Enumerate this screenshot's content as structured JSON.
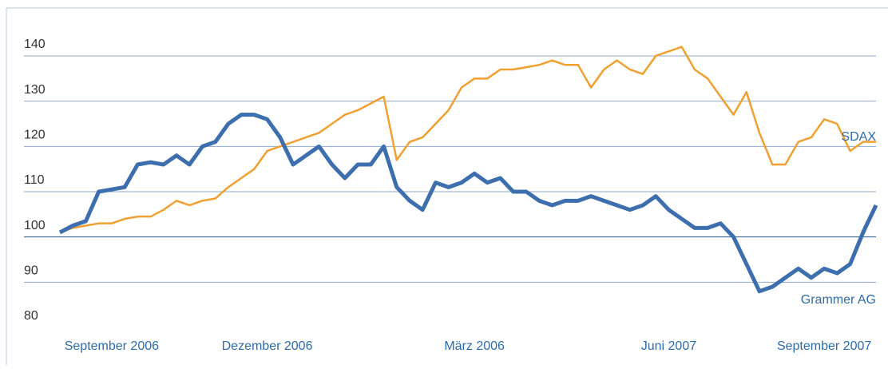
{
  "chart_data": {
    "type": "line",
    "categories": [
      null,
      null,
      null,
      null,
      "September 2006",
      null,
      null,
      null,
      null,
      null,
      null,
      null,
      null,
      null,
      null,
      null,
      "Dezember 2006",
      null,
      null,
      null,
      null,
      null,
      null,
      null,
      null,
      null,
      null,
      null,
      null,
      null,
      null,
      null,
      "März 2006",
      null,
      null,
      null,
      null,
      null,
      null,
      null,
      null,
      null,
      null,
      null,
      null,
      null,
      null,
      "Juni 2007",
      null,
      null,
      null,
      null,
      null,
      null,
      null,
      null,
      null,
      null,
      null,
      "September 2007",
      null,
      null,
      null,
      null
    ],
    "series": [
      {
        "name": "SDAX",
        "color": "#f0a030",
        "values": [
          101,
          102,
          102.5,
          103,
          103,
          104,
          104.5,
          104.5,
          106,
          108,
          107,
          108,
          108.5,
          111,
          113,
          115,
          119,
          120,
          121,
          122,
          123,
          125,
          127,
          128,
          129.5,
          131,
          117,
          121,
          122,
          125,
          128,
          133,
          135,
          135,
          137,
          137,
          137.5,
          138,
          139,
          138,
          138,
          133,
          137,
          139,
          137,
          136,
          140,
          141,
          142,
          137,
          135,
          131,
          127,
          132,
          123,
          116,
          116,
          121,
          122,
          126,
          125,
          119,
          121,
          121
        ]
      },
      {
        "name": "Grammer AG",
        "color": "#3d6fae",
        "values": [
          101,
          102.5,
          103.5,
          110,
          110.5,
          111,
          116,
          116.5,
          116,
          118,
          116,
          120,
          121,
          125,
          127,
          127,
          126,
          122,
          116,
          118,
          120,
          116,
          113,
          116,
          116,
          120,
          111,
          108,
          106,
          112,
          111,
          112,
          114,
          112,
          113,
          110,
          110,
          108,
          107,
          108,
          108,
          109,
          108,
          107,
          106,
          107,
          109,
          106,
          104,
          102,
          102,
          103,
          100,
          94,
          88,
          89,
          91,
          93,
          91,
          93,
          92,
          94,
          101,
          107
        ]
      }
    ],
    "ylim": [
      76,
      150
    ],
    "yticks": [
      80,
      90,
      100,
      110,
      120,
      130,
      140
    ],
    "grid": true
  }
}
